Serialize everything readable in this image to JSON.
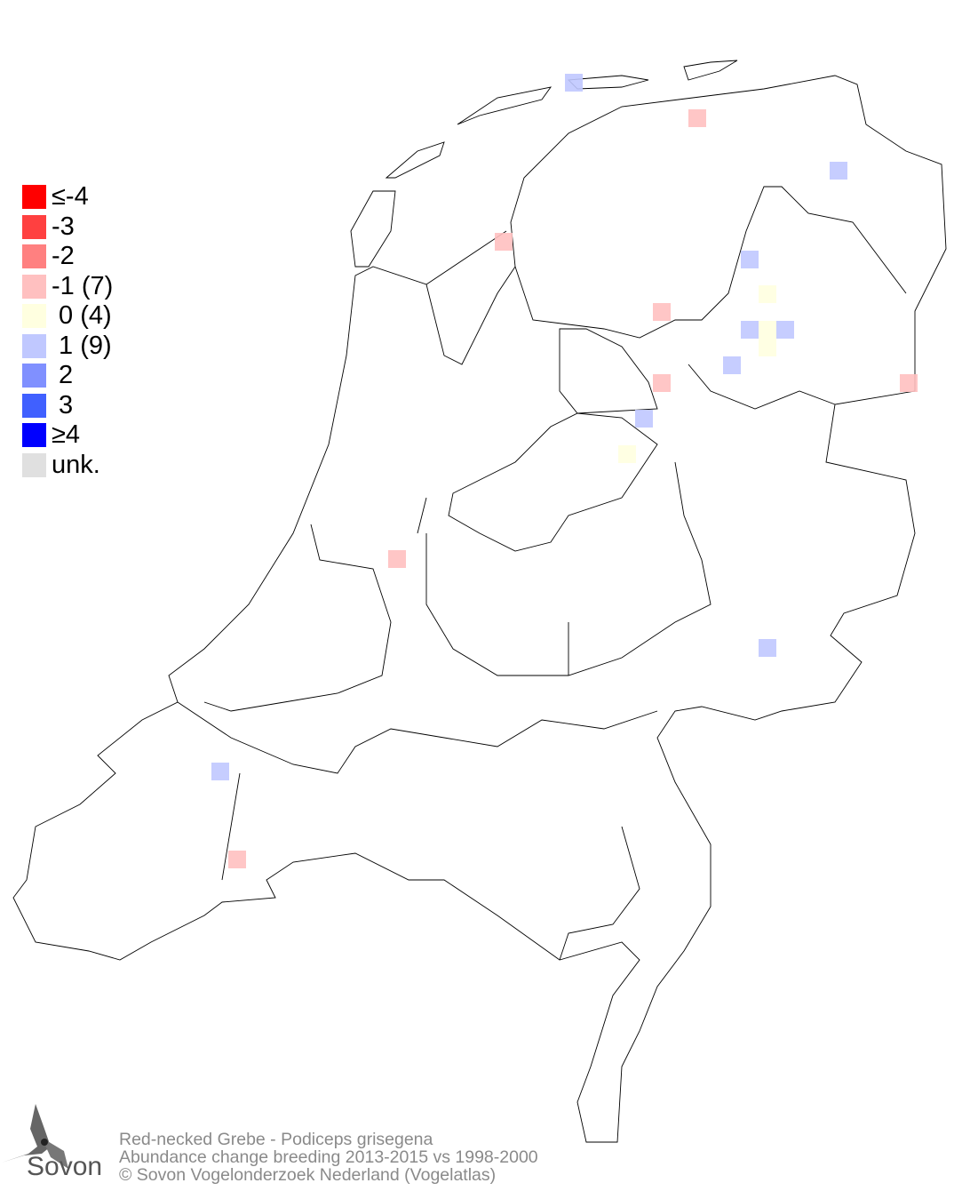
{
  "map": {
    "legend": [
      {
        "label": "≤-4",
        "color": "#ff0000"
      },
      {
        "label": "-3",
        "color": "#ff4040"
      },
      {
        "label": "-2",
        "color": "#ff8080"
      },
      {
        "label": "-1 (7)",
        "color": "#ffc0c0"
      },
      {
        "label": " 0 (4)",
        "color": "#ffffe0"
      },
      {
        "label": " 1 (9)",
        "color": "#c0c8ff"
      },
      {
        "label": " 2",
        "color": "#8090ff"
      },
      {
        "label": " 3",
        "color": "#4060ff"
      },
      {
        "label": "≥4",
        "color": "#0000ff"
      },
      {
        "label": "unk.",
        "color": "#e0e0e0"
      }
    ]
  },
  "footer": {
    "species": "Red-necked Grebe - Podiceps grisegena",
    "subtitle": "Abundance change breeding  2013-2015 vs 1998-2000",
    "copyright": "© Sovon Vogelonderzoek Nederland (Vogelatlas)"
  },
  "logo": {
    "text": "Sovon"
  }
}
